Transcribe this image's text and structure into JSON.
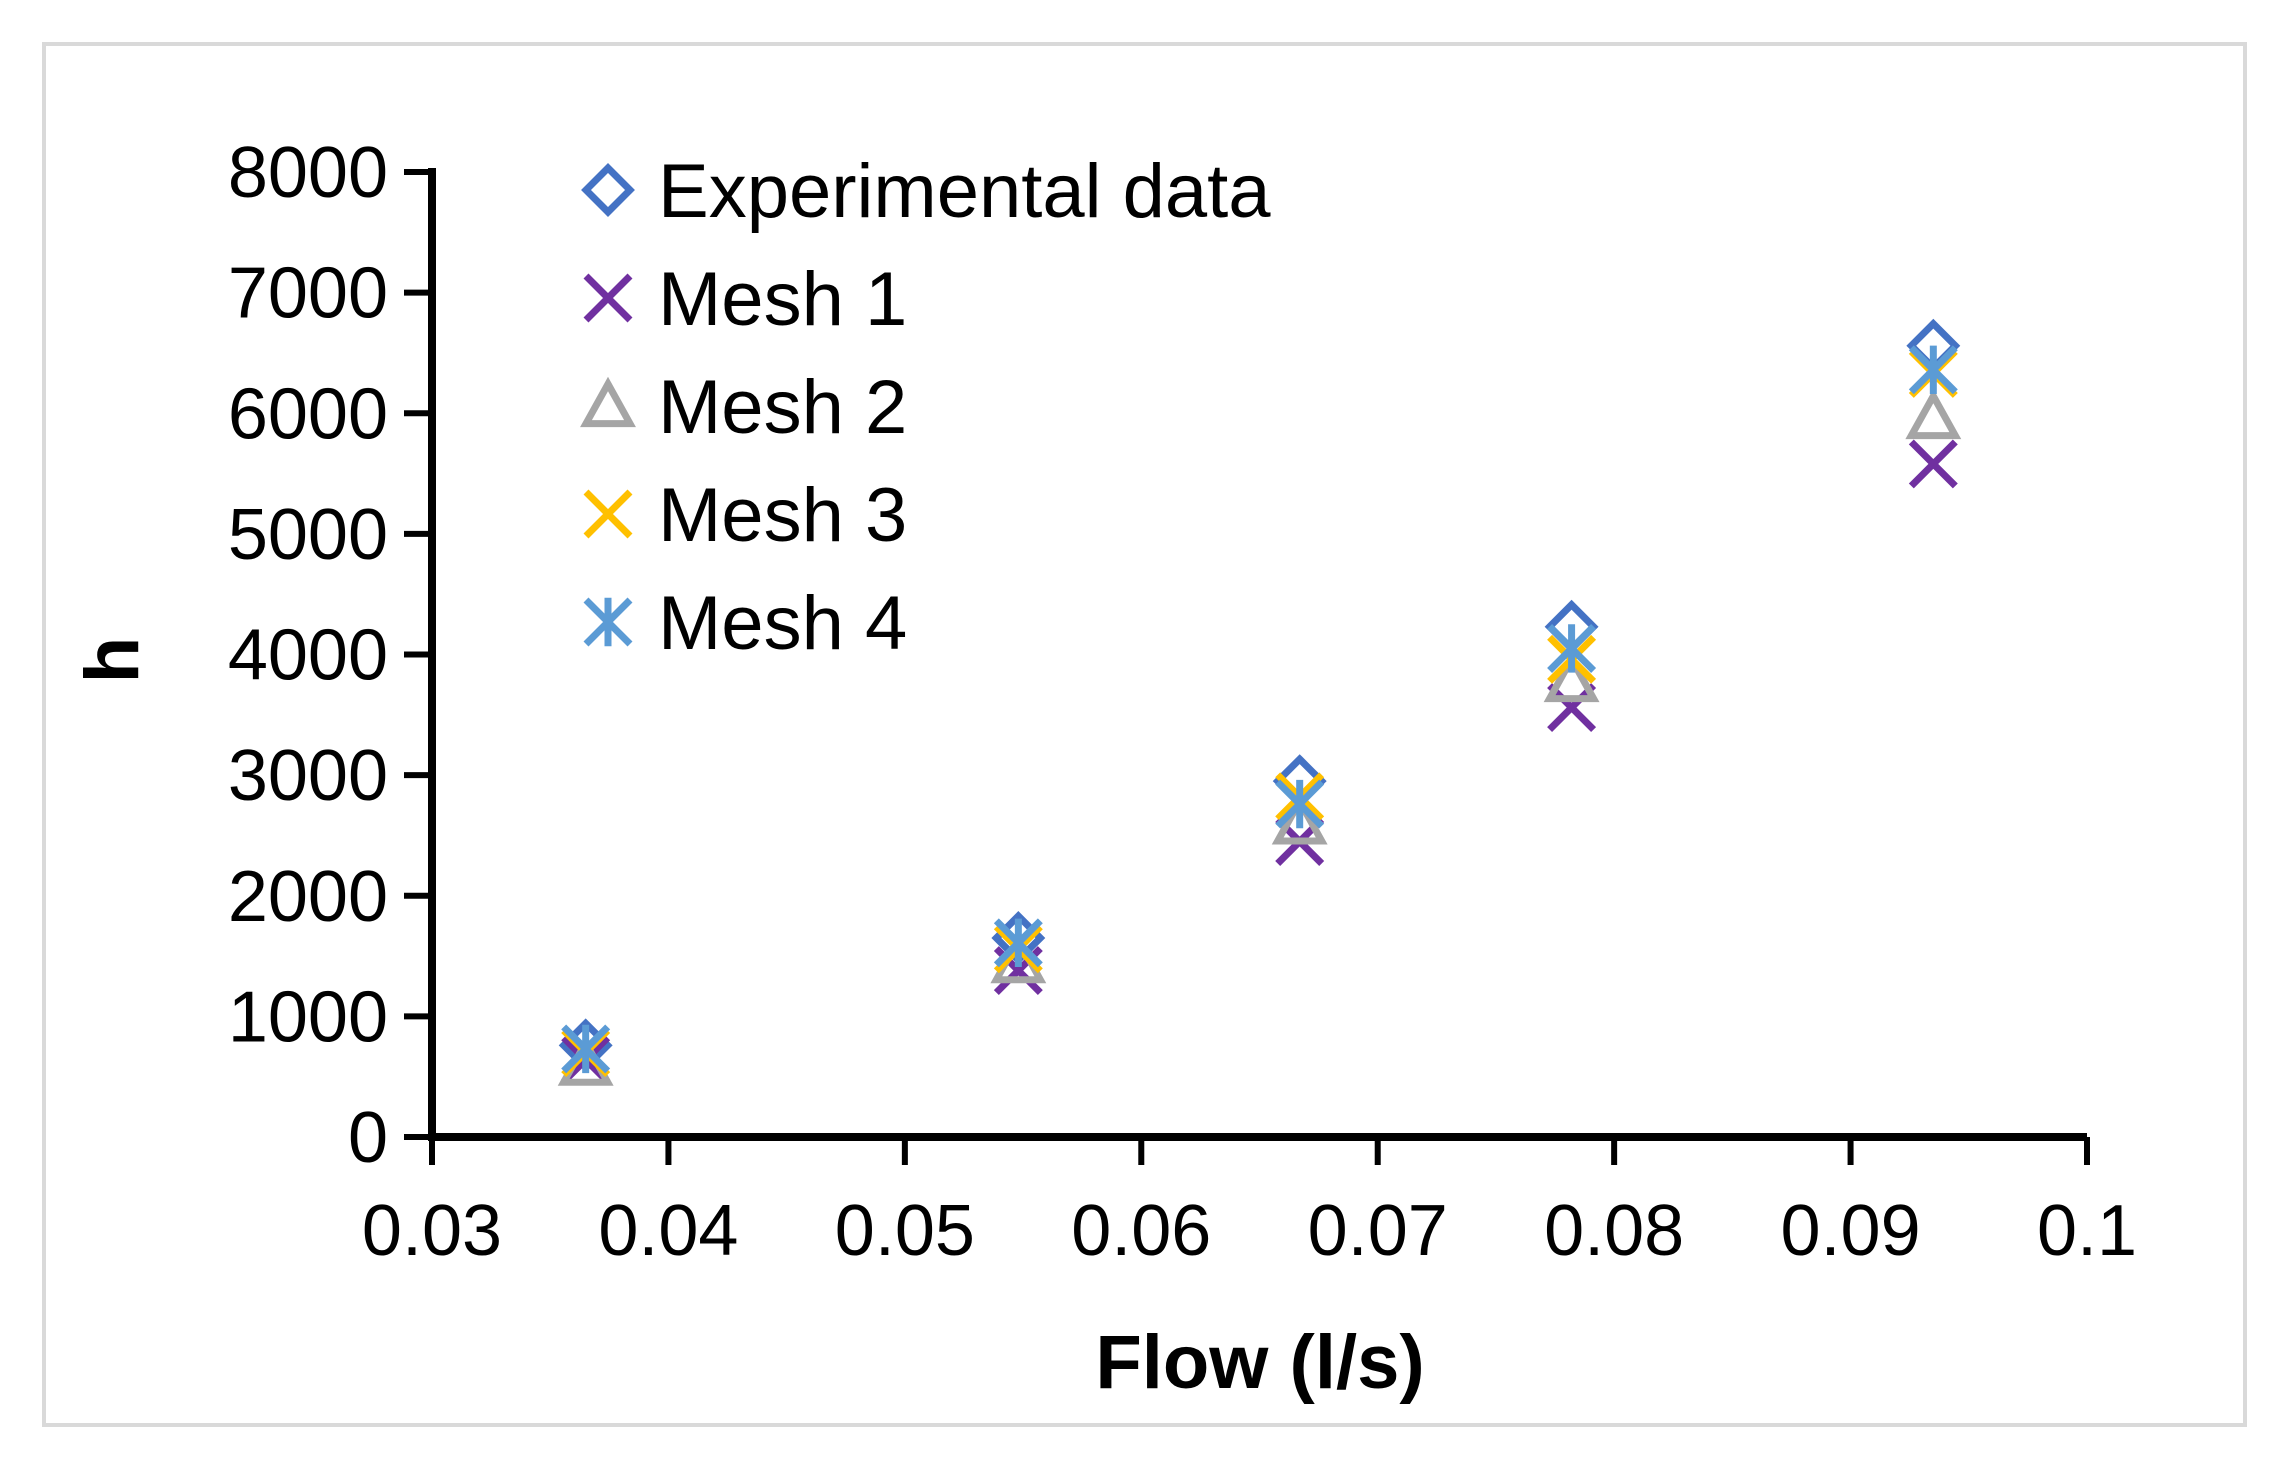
{
  "chart_data": {
    "type": "scatter",
    "title": "",
    "xlabel": "Flow (l/s)",
    "ylabel": "h",
    "xlim": [
      0.03,
      0.1
    ],
    "ylim": [
      0,
      8000
    ],
    "xticks": [
      "0.03",
      "0.04",
      "0.05",
      "0.06",
      "0.07",
      "0.08",
      "0.09",
      "0.1"
    ],
    "yticks": [
      "0",
      "1000",
      "2000",
      "3000",
      "4000",
      "5000",
      "6000",
      "7000",
      "8000"
    ],
    "legend_position": "top-left",
    "grid": false,
    "series": [
      {
        "name": "Experimental data",
        "marker": "diamond",
        "color": "#4472C4",
        "x": [
          0.0365,
          0.0548,
          0.0667,
          0.0782,
          0.0935
        ],
        "y": [
          760,
          1650,
          2950,
          4230,
          6560
        ]
      },
      {
        "name": "Mesh 1",
        "marker": "x",
        "color": "#7030A0",
        "x": [
          0.0365,
          0.0548,
          0.0667,
          0.0782,
          0.0935
        ],
        "y": [
          640,
          1380,
          2450,
          3560,
          5580
        ]
      },
      {
        "name": "Mesh 2",
        "marker": "triangle",
        "color": "#A5A5A5",
        "x": [
          0.0365,
          0.0548,
          0.0667,
          0.0782,
          0.0935
        ],
        "y": [
          600,
          1450,
          2600,
          3780,
          5960
        ]
      },
      {
        "name": "Mesh 3",
        "marker": "x",
        "color": "#FFC000",
        "x": [
          0.0365,
          0.0548,
          0.0667,
          0.0782,
          0.0935
        ],
        "y": [
          700,
          1560,
          2820,
          3960,
          6330
        ]
      },
      {
        "name": "Mesh 4",
        "marker": "star",
        "color": "#5B9BD5",
        "x": [
          0.0365,
          0.0548,
          0.0667,
          0.0782,
          0.0935
        ],
        "y": [
          730,
          1610,
          2760,
          4050,
          6360
        ]
      }
    ]
  }
}
